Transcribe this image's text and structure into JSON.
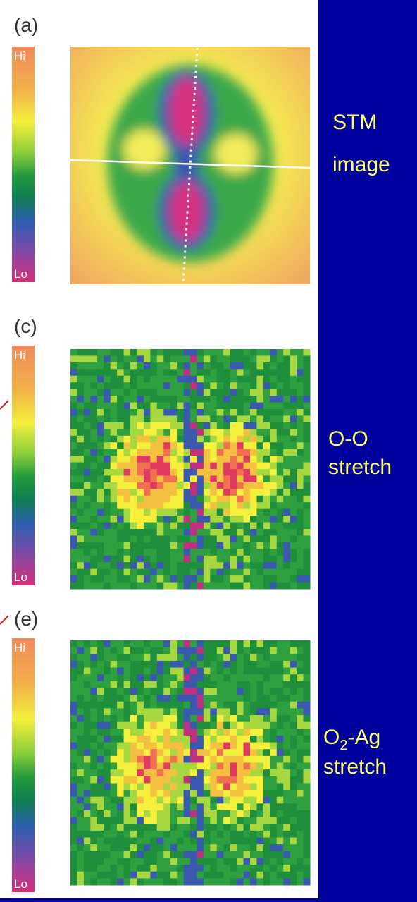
{
  "panels": [
    {
      "label": "(a)",
      "hi": "Hi",
      "lo": "Lo"
    },
    {
      "label": "(c)",
      "hi": "Hi",
      "lo": "Lo"
    },
    {
      "label": "(e)",
      "hi": "Hi",
      "lo": "Lo"
    }
  ],
  "captions": [
    {
      "lines": [
        "STM",
        "image"
      ]
    },
    {
      "lines": [
        "O-O",
        "stretch"
      ]
    },
    {
      "lines": [
        [
          "O",
          "2",
          "-Ag"
        ],
        "stretch"
      ]
    }
  ]
}
